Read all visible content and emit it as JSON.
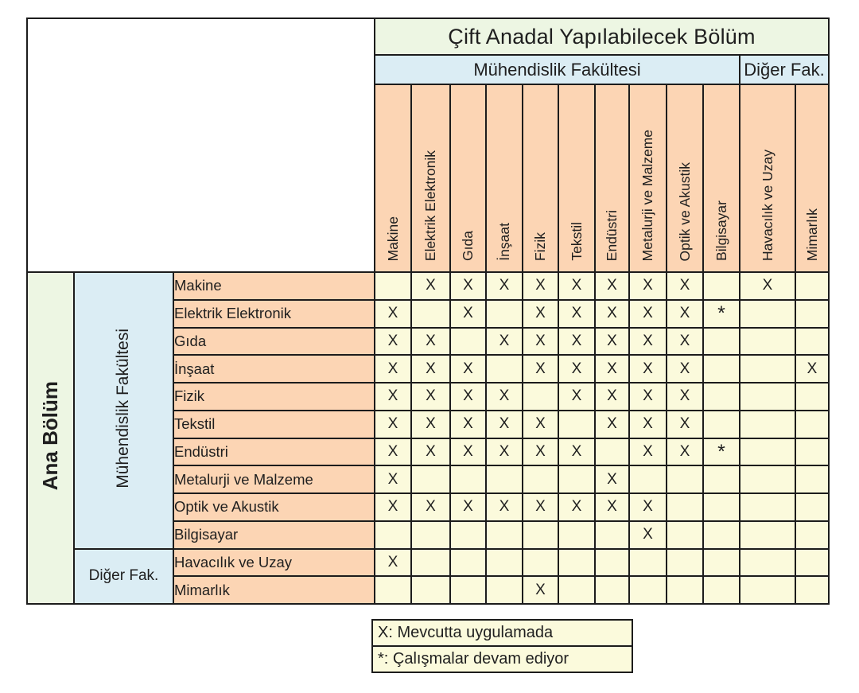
{
  "colors": {
    "border": "#1c1c1c",
    "title_bg": "#edf6e3",
    "group_header_bg": "#dbedf4",
    "department_header_bg": "#fcd5b4",
    "cell_bg": "#fbfadc",
    "text": "#1f1f1f"
  },
  "chart_data": {
    "type": "table",
    "title": "Çift Anadal Yapılabilecek Bölüm",
    "row_axis_label": "Ana Bölüm",
    "column_groups": [
      {
        "label": "Mühendislik Fakültesi",
        "span": 10
      },
      {
        "label": "Diğer Fak.",
        "span": 2
      }
    ],
    "row_groups": [
      {
        "label": "Mühendislik Fakültesi",
        "span": 10
      },
      {
        "label": "Diğer Fak.",
        "span": 2
      }
    ],
    "columns": [
      "Makine",
      "Elektrik Elektronik",
      "Gıda",
      "İnşaat",
      "Fizik",
      "Tekstil",
      "Endüstri",
      "Metalurji ve Malzeme",
      "Optik ve Akustik",
      "Bilgisayar",
      "Havacılık ve Uzay",
      "Mimarlık"
    ],
    "rows": [
      {
        "label": "Makine",
        "marks": [
          "",
          "X",
          "X",
          "X",
          "X",
          "X",
          "X",
          "X",
          "X",
          "",
          "X",
          ""
        ]
      },
      {
        "label": "Elektrik Elektronik",
        "marks": [
          "X",
          "",
          "X",
          "",
          "X",
          "X",
          "X",
          "X",
          "X",
          "*",
          "",
          ""
        ]
      },
      {
        "label": "Gıda",
        "marks": [
          "X",
          "X",
          "",
          "X",
          "X",
          "X",
          "X",
          "X",
          "X",
          "",
          "",
          ""
        ]
      },
      {
        "label": "İnşaat",
        "marks": [
          "X",
          "X",
          "X",
          "",
          "X",
          "X",
          "X",
          "X",
          "X",
          "",
          "",
          "X"
        ]
      },
      {
        "label": "Fizik",
        "marks": [
          "X",
          "X",
          "X",
          "X",
          "",
          "X",
          "X",
          "X",
          "X",
          "",
          "",
          ""
        ]
      },
      {
        "label": "Tekstil",
        "marks": [
          "X",
          "X",
          "X",
          "X",
          "X",
          "",
          "X",
          "X",
          "X",
          "",
          "",
          ""
        ]
      },
      {
        "label": "Endüstri",
        "marks": [
          "X",
          "X",
          "X",
          "X",
          "X",
          "X",
          "",
          "X",
          "X",
          "*",
          "",
          ""
        ]
      },
      {
        "label": "Metalurji ve Malzeme",
        "marks": [
          "X",
          "",
          "",
          "",
          "",
          "",
          "X",
          "",
          "",
          "",
          "",
          ""
        ]
      },
      {
        "label": "Optik ve Akustik",
        "marks": [
          "X",
          "X",
          "X",
          "X",
          "X",
          "X",
          "X",
          "X",
          "",
          "",
          "",
          ""
        ]
      },
      {
        "label": "Bilgisayar",
        "marks": [
          "",
          "",
          "",
          "",
          "",
          "",
          "",
          "X",
          "",
          "",
          "",
          ""
        ]
      },
      {
        "label": "Havacılık ve Uzay",
        "marks": [
          "X",
          "",
          "",
          "",
          "",
          "",
          "",
          "",
          "",
          "",
          "",
          ""
        ]
      },
      {
        "label": "Mimarlık",
        "marks": [
          "",
          "",
          "",
          "",
          "X",
          "",
          "",
          "",
          "",
          "",
          "",
          ""
        ]
      }
    ],
    "legend": [
      "X: Mevcutta uygulamada",
      "*: Çalışmalar devam ediyor"
    ]
  }
}
